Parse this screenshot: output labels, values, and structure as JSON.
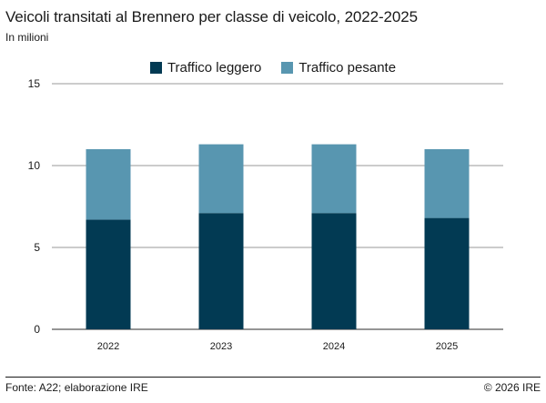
{
  "title": "Veicoli transitati al Brennero per classe di veicolo, 2022-2025",
  "subtitle": "In milioni",
  "source": "Fonte: A22; elaborazione IRE",
  "copyright": "© 2026 IRE",
  "chart_data": {
    "type": "bar",
    "stacked": true,
    "categories": [
      "2022",
      "2023",
      "2024",
      "2025"
    ],
    "series": [
      {
        "name": "Traffico leggero",
        "color": "#023a53",
        "values": [
          6.7,
          7.1,
          7.1,
          6.8
        ]
      },
      {
        "name": "Traffico pesante",
        "color": "#5896b0",
        "values": [
          4.3,
          4.2,
          4.2,
          4.2
        ]
      }
    ],
    "ylim": [
      0,
      15
    ],
    "yticks": [
      0,
      5,
      10,
      15
    ],
    "grid": true,
    "legend_position": "top-center",
    "xlabel": "",
    "ylabel": ""
  }
}
